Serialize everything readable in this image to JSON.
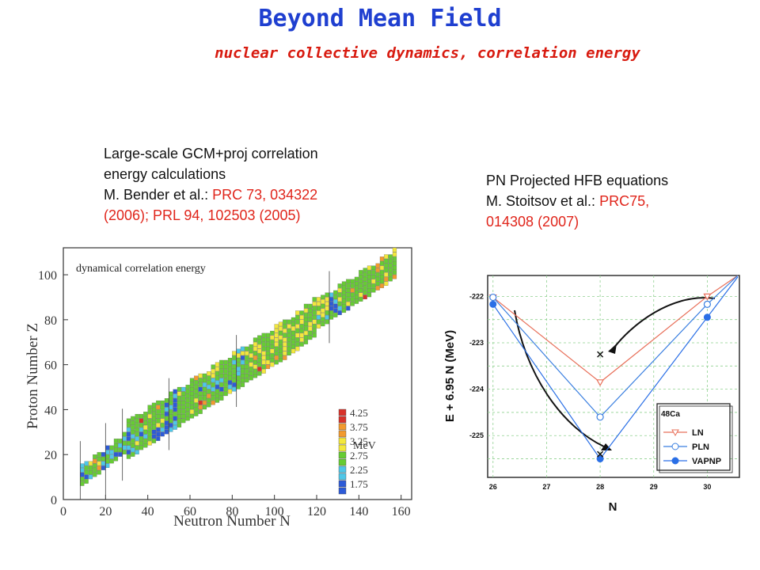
{
  "header": {
    "title": "Beyond Mean Field",
    "subtitle": "nuclear collective dynamics, correlation energy"
  },
  "left_caption": {
    "line1": "Large-scale GCM+proj correlation",
    "line2": "energy calculations",
    "line3_prefix": "M. Bender et al.: ",
    "line3_ref": "PRC 73, 034322",
    "line4_ref": "(2006); PRL 94, 102503 (2005)"
  },
  "right_caption": {
    "line1": "PN Projected HFB equations",
    "line2_prefix": "M. Stoitsov et al.: ",
    "line2_ref": "PRC75,",
    "line3_ref": "014308 (2007)"
  },
  "colors": {
    "title": "#1f3fd0",
    "subtitle": "#d81b10",
    "reference": "#e0251b",
    "map_green": "#66cc33",
    "map_yellow": "#f3e83c",
    "map_orange": "#f29a2e",
    "map_red": "#d8322a",
    "map_cyan": "#4fc7e8",
    "map_blue": "#2d5bd8"
  },
  "chart_data": [
    {
      "type": "heatmap",
      "title": "dynamical correlation energy",
      "xlabel": "Neutron Number N",
      "ylabel": "Proton Number Z",
      "xlim": [
        0,
        165
      ],
      "ylim": [
        0,
        112
      ],
      "xticks": [
        0,
        20,
        40,
        60,
        80,
        100,
        120,
        140,
        160
      ],
      "yticks": [
        0,
        20,
        40,
        60,
        80,
        100
      ],
      "colorbar_unit": "MeV",
      "colorbar_labels": [
        "4.25",
        "3.75",
        "3.25",
        "2.75",
        "2.25",
        "1.75"
      ],
      "colorbar_colors": [
        "#d8322a",
        "#f29a2e",
        "#f3e83c",
        "#66cc33",
        "#4fc7e8",
        "#2d5bd8"
      ],
      "magic_numbers": [
        8,
        20,
        28,
        50,
        82,
        126
      ],
      "band": [
        [
          8,
          10
        ],
        [
          20,
          18
        ],
        [
          30,
          26
        ],
        [
          40,
          32
        ],
        [
          50,
          38
        ],
        [
          60,
          44
        ],
        [
          70,
          50
        ],
        [
          80,
          56
        ],
        [
          90,
          62
        ],
        [
          100,
          68
        ],
        [
          110,
          74
        ],
        [
          120,
          82
        ],
        [
          130,
          88
        ],
        [
          140,
          94
        ],
        [
          150,
          100
        ],
        [
          156,
          104
        ]
      ]
    },
    {
      "type": "line",
      "title": "",
      "xlabel": "N",
      "ylabel": "E + 6.95 N (MeV)",
      "annotation": "48Ca",
      "xlim": [
        25.9,
        30.6
      ],
      "ylim": [
        -225.9,
        -221.55
      ],
      "xticks": [
        26,
        27,
        28,
        29,
        30
      ],
      "yticks": [
        -222,
        -223,
        -224,
        -225
      ],
      "series": [
        {
          "name": "LN",
          "color": "#e8705a",
          "marker": "triangle-down-open",
          "x": [
            26,
            28,
            30
          ],
          "y": [
            -222.02,
            -223.85,
            -222.0
          ]
        },
        {
          "name": "PLN",
          "color": "#3a7fe0",
          "marker": "circle-open",
          "x": [
            26,
            28,
            30
          ],
          "y": [
            -222.02,
            -224.6,
            -222.17
          ]
        },
        {
          "name": "VAPNP",
          "color": "#2a6fe6",
          "marker": "circle-filled",
          "x": [
            26,
            28,
            30
          ],
          "y": [
            -222.17,
            -225.5,
            -222.45
          ]
        }
      ],
      "cross_marks": [
        {
          "x": 28,
          "y": -223.25
        },
        {
          "x": 28,
          "y": -225.4
        }
      ]
    }
  ]
}
